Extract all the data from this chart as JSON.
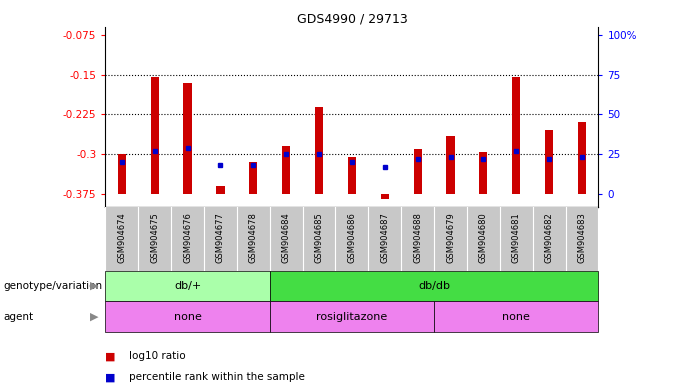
{
  "title": "GDS4990 / 29713",
  "samples": [
    "GSM904674",
    "GSM904675",
    "GSM904676",
    "GSM904677",
    "GSM904678",
    "GSM904684",
    "GSM904685",
    "GSM904686",
    "GSM904687",
    "GSM904688",
    "GSM904679",
    "GSM904680",
    "GSM904681",
    "GSM904682",
    "GSM904683"
  ],
  "log10_ratio": [
    -0.3,
    -0.155,
    -0.165,
    -0.36,
    -0.315,
    -0.285,
    -0.21,
    -0.305,
    -0.385,
    -0.29,
    -0.265,
    -0.295,
    -0.155,
    -0.255,
    -0.24
  ],
  "percentile_rank": [
    20,
    27,
    29,
    18,
    18,
    25,
    25,
    20,
    17,
    22,
    23,
    22,
    27,
    22,
    23
  ],
  "ylim_left": [
    -0.4,
    -0.06
  ],
  "yticks_left": [
    -0.375,
    -0.3,
    -0.225,
    -0.15,
    -0.075
  ],
  "ytick_labels_left": [
    "-0.375",
    "-0.3",
    "-0.225",
    "-0.15",
    "-0.075"
  ],
  "yticks_right": [
    0,
    25,
    50,
    75,
    100
  ],
  "grid_values": [
    -0.3,
    -0.225,
    -0.15
  ],
  "bar_color": "#CC0000",
  "percentile_color": "#0000CC",
  "bar_width": 0.25,
  "genotype_groups": [
    {
      "label": "db/+",
      "start": 0,
      "end": 5,
      "color": "#AAFFAA"
    },
    {
      "label": "db/db",
      "start": 5,
      "end": 15,
      "color": "#44DD44"
    }
  ],
  "agent_groups": [
    {
      "label": "none",
      "start": 0,
      "end": 5
    },
    {
      "label": "rosiglitazone",
      "start": 5,
      "end": 10
    },
    {
      "label": "none",
      "start": 10,
      "end": 15
    }
  ],
  "agent_color": "#EE82EE",
  "legend_items": [
    {
      "color": "#CC0000",
      "label": "log10 ratio"
    },
    {
      "color": "#0000CC",
      "label": "percentile rank within the sample"
    }
  ]
}
